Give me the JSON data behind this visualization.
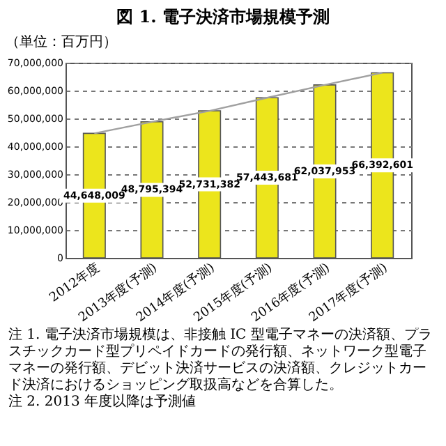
{
  "chart_data": {
    "type": "bar",
    "title": "図 1. 電子決済市場規模予測",
    "ylabel": "（単位：百万円）",
    "categories": [
      "2012年度",
      "2013年度(予測)",
      "2014年度(予測)",
      "2015年度(予測)",
      "2016年度(予測)",
      "2017年度(予測)"
    ],
    "series": [
      {
        "color": "#ece51c",
        "values": [
          44648009,
          48795394,
          52731382,
          57443681,
          62037953,
          66392601
        ],
        "value_labels": [
          "44,648,009",
          "48,795,394",
          "52,731,382",
          "57,443,681",
          "62,037,953",
          "66,392,601"
        ]
      },
      {
        "type": "line",
        "color": "#a0a0a0",
        "values": [
          44648009,
          48795394,
          52731382,
          57443681,
          62037953,
          66392601
        ]
      }
    ],
    "ylim": [
      0,
      70000000
    ],
    "yticks": [
      0,
      {
        "value": 10000000,
        "label": "10,000,000"
      },
      {
        "value": 20000000,
        "label": "20,000,000"
      },
      {
        "value": 30000000,
        "label": "30,000,000"
      },
      {
        "value": 40000000,
        "label": "40,000,000"
      },
      {
        "value": 50000000,
        "label": "50,000,000"
      },
      {
        "value": 60000000,
        "label": "60,000,000"
      },
      {
        "value": 70000000,
        "label": "70,000,000"
      }
    ],
    "grid": "y",
    "marker": "none",
    "line_style": "solid",
    "annotations": [
      "注 1. 電子決済市場規模は、非接触 IC 型電子マネーの決済額、プラスチックカード型プリペイドカードの発行額、ネットワーク型電子マネーの発行額、デビット決済サービスの決済額、クレジットカード決済におけるショッピング取扱高などを合算した。",
      "注 2. 2013 年度以降は予測値"
    ]
  }
}
